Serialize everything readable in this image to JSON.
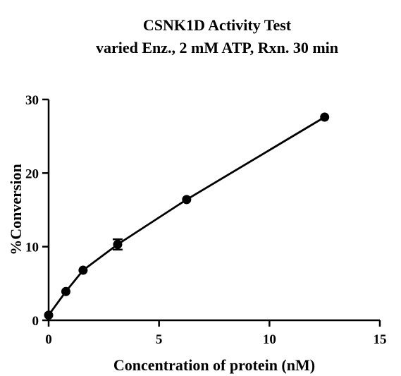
{
  "chart_data": {
    "type": "line",
    "title": "CSNK1D Activity Test",
    "subtitle": "varied Enz., 2 mM ATP, Rxn. 30 min",
    "xlabel": "Concentration of protein (nM)",
    "ylabel": "%Conversion",
    "xlim": [
      0,
      15
    ],
    "ylim": [
      0,
      30
    ],
    "xticks": [
      0,
      5,
      10,
      15
    ],
    "yticks": [
      0,
      10,
      20,
      30
    ],
    "grid": false,
    "series": [
      {
        "x": [
          0,
          0.78,
          1.56,
          3.125,
          6.25,
          12.5
        ],
        "y": [
          0.7,
          3.9,
          6.8,
          10.3,
          16.4,
          27.6
        ],
        "error": [
          0,
          0,
          0,
          0.7,
          0,
          0
        ],
        "color": "#000000",
        "marker": "circle"
      }
    ]
  }
}
